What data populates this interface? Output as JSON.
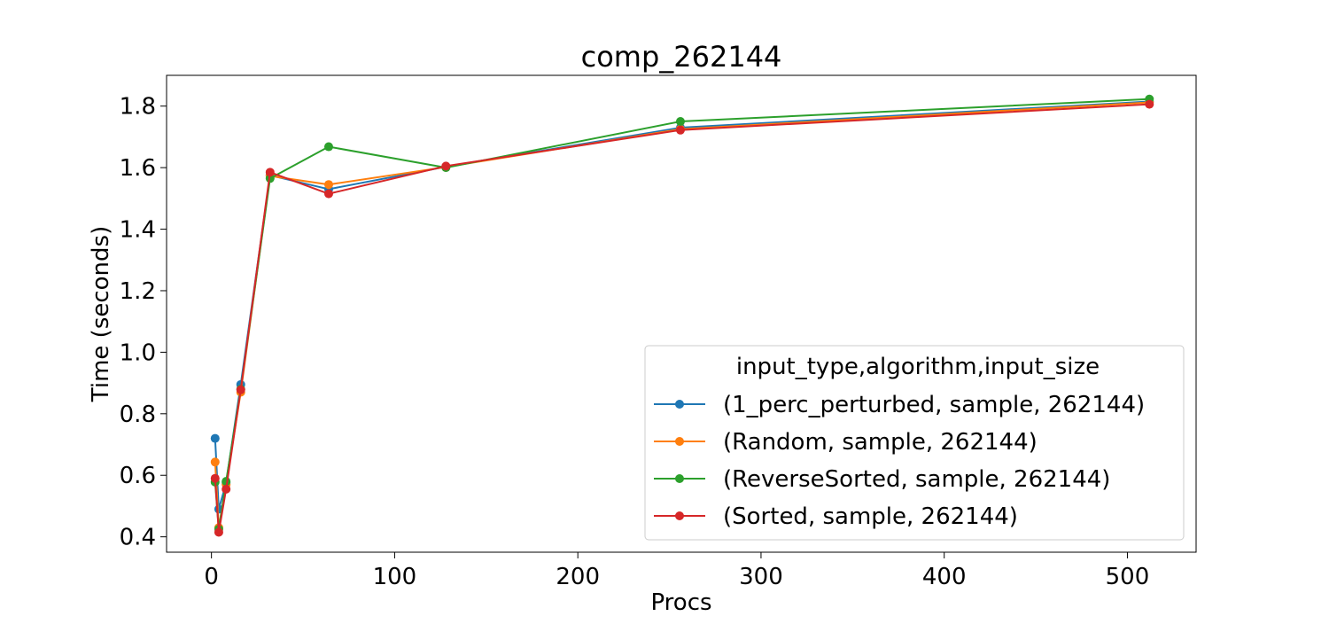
{
  "chart_data": {
    "type": "line",
    "title": "comp_262144",
    "xlabel": "Procs",
    "ylabel": "Time (seconds)",
    "xlim": [
      -24.5,
      537.5
    ],
    "ylim": [
      0.35,
      1.9
    ],
    "xticks": [
      0,
      100,
      200,
      300,
      400,
      500
    ],
    "xtick_labels": [
      "0",
      "100",
      "200",
      "300",
      "400",
      "500"
    ],
    "yticks": [
      0.4,
      0.6,
      0.8,
      1.0,
      1.2,
      1.4,
      1.6,
      1.8
    ],
    "ytick_labels": [
      "0.4",
      "0.6",
      "0.8",
      "1.0",
      "1.2",
      "1.4",
      "1.6",
      "1.8"
    ],
    "grid": false,
    "legend": {
      "title": "input_type,algorithm,input_size",
      "position": "lower-right"
    },
    "x": [
      2,
      4,
      8,
      16,
      32,
      64,
      128,
      256,
      512
    ],
    "series": [
      {
        "name": "(1_perc_perturbed, sample, 262144)",
        "color": "#1f77b4",
        "values": [
          0.72,
          0.49,
          0.575,
          0.895,
          1.575,
          1.53,
          1.603,
          1.73,
          1.815
        ]
      },
      {
        "name": "(Random, sample, 262144)",
        "color": "#ff7f0e",
        "values": [
          0.643,
          0.43,
          0.57,
          0.87,
          1.573,
          1.545,
          1.602,
          1.725,
          1.812
        ]
      },
      {
        "name": "(ReverseSorted, sample, 262144)",
        "color": "#2ca02c",
        "values": [
          0.578,
          0.425,
          0.58,
          0.88,
          1.565,
          1.668,
          1.6,
          1.75,
          1.823
        ]
      },
      {
        "name": "(Sorted, sample, 262144)",
        "color": "#d62728",
        "values": [
          0.59,
          0.415,
          0.555,
          0.878,
          1.585,
          1.515,
          1.605,
          1.722,
          1.806
        ]
      }
    ]
  }
}
